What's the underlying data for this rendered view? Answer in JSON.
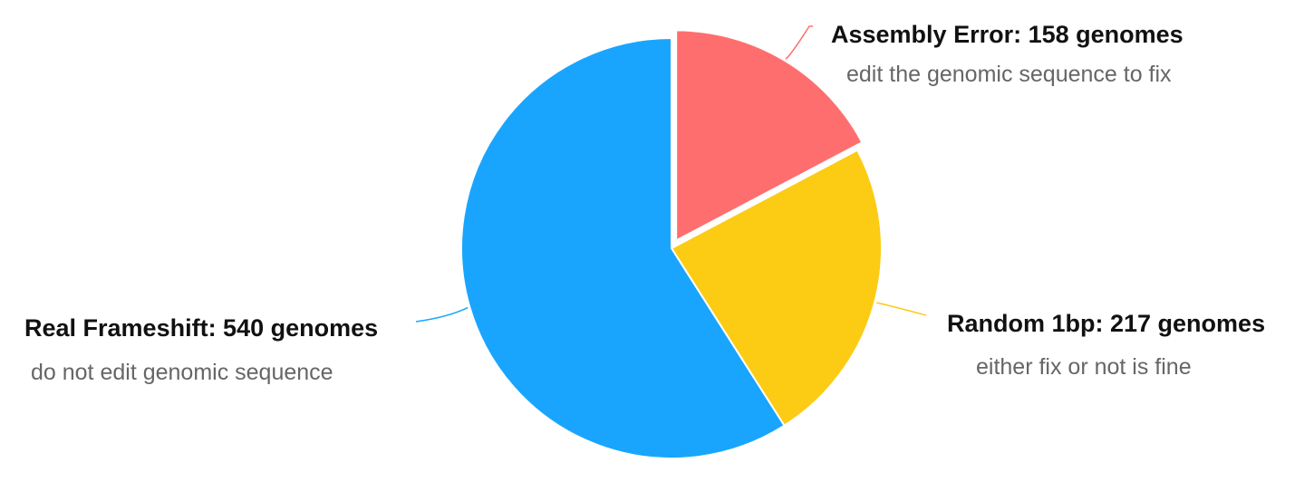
{
  "chart_data": {
    "type": "pie",
    "slices": [
      {
        "name": "Assembly Error",
        "value": 158,
        "label": "Assembly Error: 158 genomes",
        "sublabel": "edit the genomic sequence to fix",
        "color": "#ff6e6e",
        "exploded": true
      },
      {
        "name": "Random 1bp",
        "value": 217,
        "label": "Random 1bp: 217 genomes",
        "sublabel": "either fix or not is fine",
        "color": "#fccb14",
        "exploded": false
      },
      {
        "name": "Real Frameshift",
        "value": 540,
        "label": "Real Frameshift: 540 genomes",
        "sublabel": "do not edit genomic sequence",
        "color": "#19a5fe",
        "exploded": false
      }
    ]
  }
}
